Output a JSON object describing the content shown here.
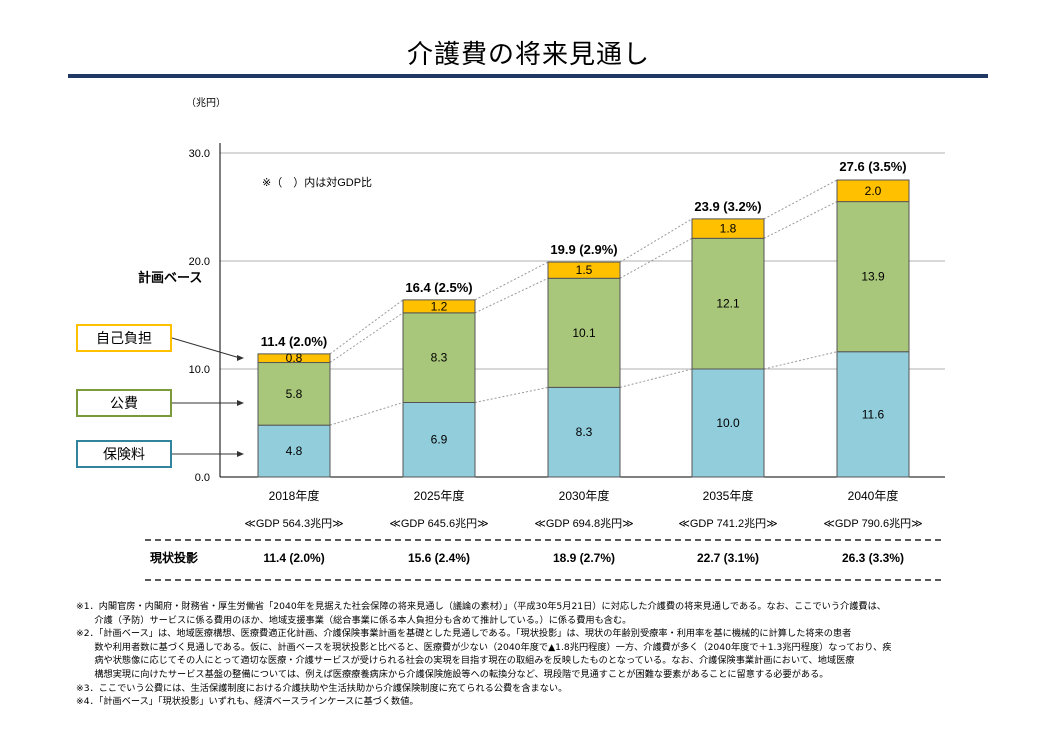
{
  "page": {
    "title": "介護費の将来見通し"
  },
  "chart_data": {
    "type": "bar",
    "stacked": true,
    "unit_label": "（兆円）",
    "gdp_note": "※（　）内は対GDP比",
    "ylim": [
      0,
      30
    ],
    "yticks": [
      "0.0",
      "10.0",
      "20.0",
      "30.0"
    ],
    "ytick_values": [
      0,
      10,
      20,
      30
    ],
    "plan_base_label": "計画ベース",
    "categories": [
      "2018年度",
      "2025年度",
      "2030年度",
      "2035年度",
      "2040年度"
    ],
    "gdp_labels": [
      "≪GDP 564.3兆円≫",
      "≪GDP 645.6兆円≫",
      "≪GDP 694.8兆円≫",
      "≪GDP 741.2兆円≫",
      "≪GDP 790.6兆円≫"
    ],
    "series": [
      {
        "name": "保険料",
        "values": [
          4.8,
          6.9,
          8.3,
          10.0,
          11.6
        ],
        "labels": [
          "4.8",
          "6.9",
          "8.3",
          "10.0",
          "11.6"
        ],
        "color": "#92cddc"
      },
      {
        "name": "公費",
        "values": [
          5.8,
          8.3,
          10.1,
          12.1,
          13.9
        ],
        "labels": [
          "5.8",
          "8.3",
          "10.1",
          "12.1",
          "13.9"
        ],
        "color": "#a9c77a"
      },
      {
        "name": "自己負担",
        "values": [
          0.8,
          1.2,
          1.5,
          1.8,
          2.0
        ],
        "labels": [
          "0.8",
          "1.2",
          "1.5",
          "1.8",
          "2.0"
        ],
        "color": "#ffc000"
      }
    ],
    "totals": [
      11.4,
      16.4,
      19.9,
      23.9,
      27.6
    ],
    "total_labels": [
      "11.4 (2.0%)",
      "16.4 (2.5%)",
      "19.9 (2.9%)",
      "23.9 (3.2%)",
      "27.6 (3.5%)"
    ],
    "current_projection": {
      "label": "現状投影",
      "values": [
        "11.4 (2.0%)",
        "15.6 (2.4%)",
        "18.9 (2.7%)",
        "22.7 (3.1%)",
        "26.3 (3.3%)"
      ]
    },
    "legend": [
      {
        "name": "自己負担",
        "color": "#ffc000"
      },
      {
        "name": "公費",
        "color": "#7a9a3c"
      },
      {
        "name": "保険料",
        "color": "#31849b"
      }
    ]
  },
  "notes": [
    "※1．内閣官房・内閣府・財務省・厚生労働省「2040年を見据えた社会保障の将来見通し（議論の素材）」（平成30年5月21日）に対応した介護費の将来見通しである。なお、ここでいう介護費は、",
    "　　介護（予防）サービスに係る費用のほか、地域支援事業（総合事業に係る本人負担分も含めて推計している。）に係る費用も含む。",
    "※2．「計画ベース」は、地域医療構想、医療費適正化計画、介護保険事業計画を基礎とした見通しである。「現状投影」は、現状の年齢別受療率・利用率を基に機械的に計算した将来の患者",
    "　　数や利用者数に基づく見通しである。仮に、計画ベースを現状投影と比べると、医療費が少ない（2040年度で▲1.8兆円程度）一方、介護費が多く（2040年度で＋1.3兆円程度）なっており、疾",
    "　　病や状態像に応じてその人にとって適切な医療・介護サービスが受けられる社会の実現を目指す現在の取組みを反映したものとなっている。なお、介護保険事業計画において、地域医療",
    "　　構想実現に向けたサービス基盤の整備については、例えば医療療養病床から介護保険施設等への転換分など、現段階で見通すことが困難な要素があることに留意する必要がある。",
    "※3．ここでいう公費には、生活保護制度における介護扶助や生活扶助から介護保険制度に充てられる公費を含まない。",
    "※4．「計画ベース」「現状投影」いずれも、経済ベースラインケースに基づく数値。"
  ]
}
